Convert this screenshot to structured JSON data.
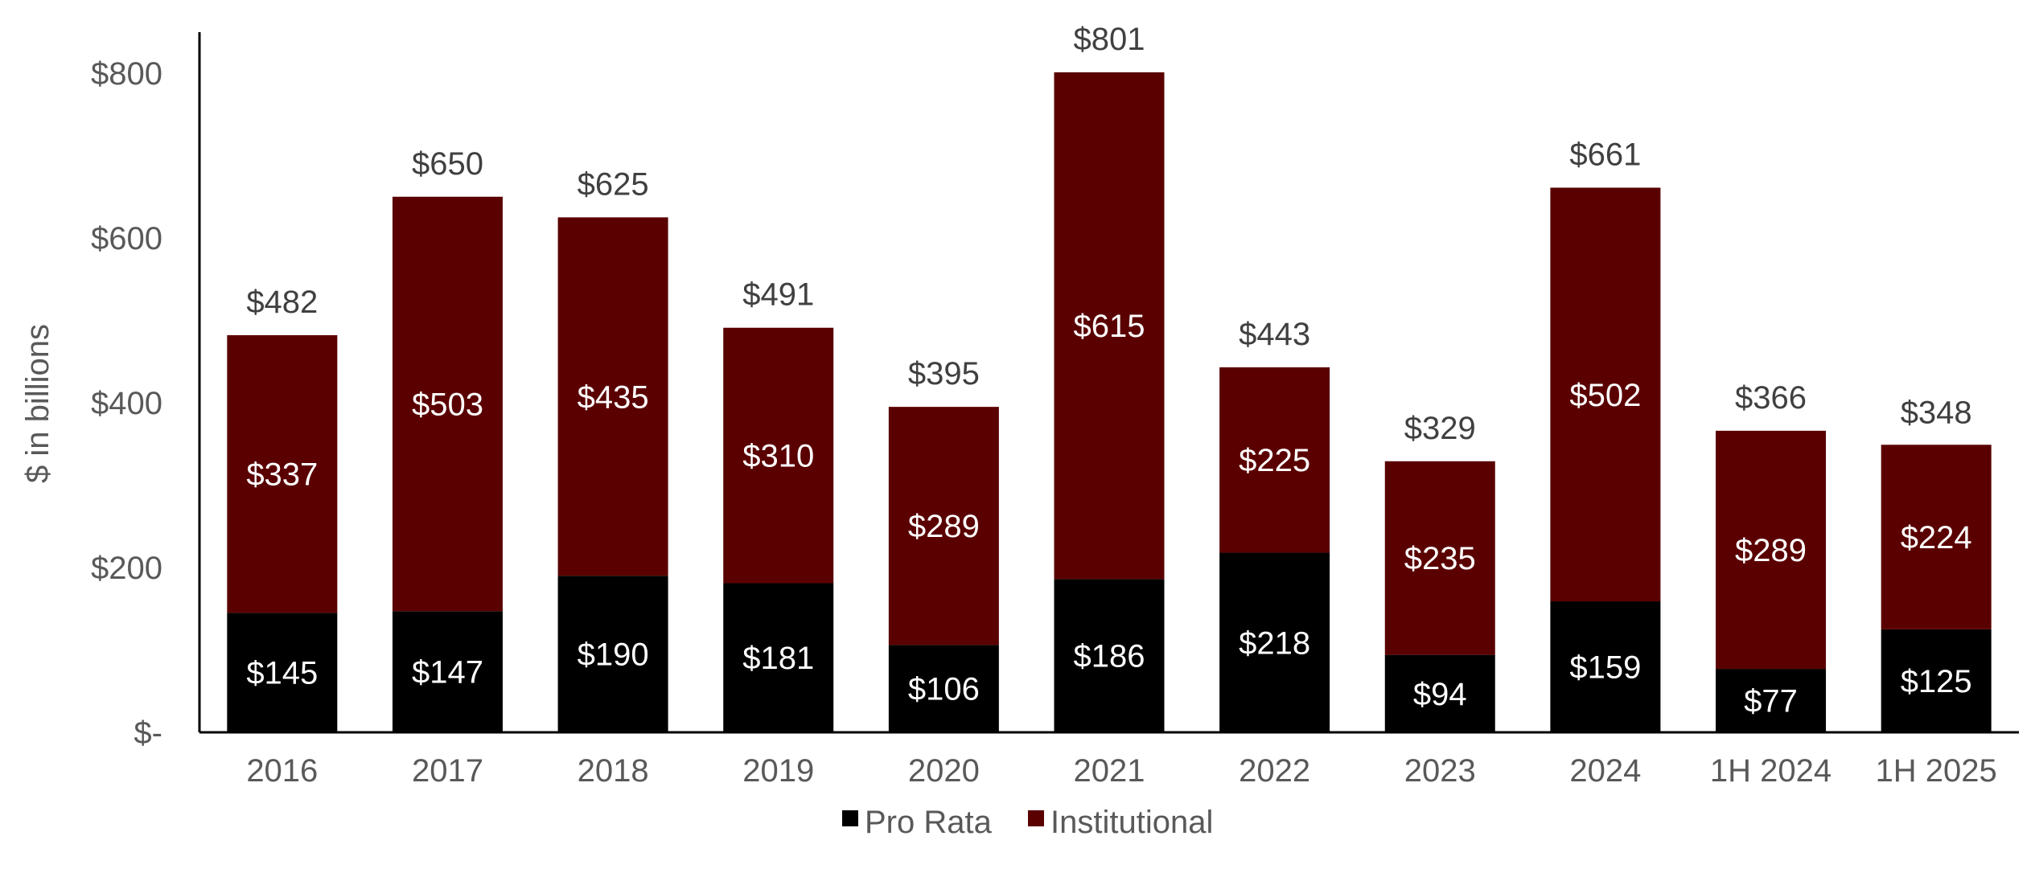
{
  "chart_data": {
    "type": "bar",
    "stacked": true,
    "title": "",
    "xlabel": "",
    "ylabel": "$ in billions",
    "ylim": [
      0,
      850
    ],
    "yticks": [
      0,
      200,
      400,
      600,
      800
    ],
    "ytick_labels": [
      "$-",
      "$200",
      "$400",
      "$600",
      "$800"
    ],
    "categories": [
      "2016",
      "2017",
      "2018",
      "2019",
      "2020",
      "2021",
      "2022",
      "2023",
      "2024",
      "1H 2024",
      "1H 2025"
    ],
    "series": [
      {
        "name": "Pro Rata",
        "color": "#000000",
        "values": [
          145,
          147,
          190,
          181,
          106,
          186,
          218,
          94,
          159,
          77,
          125
        ],
        "labels": [
          "$145",
          "$147",
          "$190",
          "$181",
          "$106",
          "$186",
          "$218",
          "$94",
          "$159",
          "$77",
          "$125"
        ]
      },
      {
        "name": "Institutional",
        "color": "#5a0000",
        "values": [
          337,
          503,
          435,
          310,
          289,
          615,
          225,
          235,
          502,
          289,
          224
        ],
        "labels": [
          "$337",
          "$503",
          "$435",
          "$310",
          "$289",
          "$615",
          "$225",
          "$235",
          "$502",
          "$289",
          "$224"
        ]
      }
    ],
    "totals": [
      482,
      650,
      625,
      491,
      395,
      801,
      443,
      329,
      661,
      366,
      348
    ],
    "total_labels": [
      "$482",
      "$650",
      "$625",
      "$491",
      "$395",
      "$801",
      "$443",
      "$329",
      "$661",
      "$366",
      "$348"
    ],
    "grid": false,
    "legend": "bottom-center"
  }
}
